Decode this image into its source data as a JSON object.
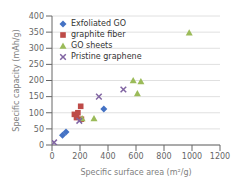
{
  "chart_data": {
    "type": "scatter",
    "xlabel": "Specific surface area (m²/g)",
    "ylabel": "Specific capacity (mAh/g)",
    "xlim": [
      0,
      1200
    ],
    "ylim": [
      0,
      400
    ],
    "xticks": [
      0,
      200,
      400,
      600,
      800,
      1000,
      1200
    ],
    "yticks": [
      0,
      50,
      100,
      150,
      200,
      250,
      300,
      350,
      400
    ],
    "grid": "y",
    "legend": "upper left",
    "series": [
      {
        "name": "Exfoliated GO",
        "color": "#4472C4",
        "marker": "diamond",
        "values": [
          [
            75,
            30
          ],
          [
            100,
            40
          ],
          [
            370,
            112
          ]
        ]
      },
      {
        "name": "graphite fiber",
        "color": "#BE4B48",
        "marker": "square",
        "values": [
          [
            160,
            95
          ],
          [
            175,
            85
          ],
          [
            185,
            100
          ],
          [
            205,
            120
          ],
          [
            210,
            80
          ]
        ]
      },
      {
        "name": "GO sheets",
        "color": "#9BBB59",
        "marker": "triangle",
        "values": [
          [
            215,
            82
          ],
          [
            300,
            82
          ],
          [
            580,
            200
          ],
          [
            610,
            160
          ],
          [
            635,
            197
          ],
          [
            980,
            348
          ]
        ]
      },
      {
        "name": "Pristine graphene",
        "color": "#8064A2",
        "marker": "x",
        "values": [
          [
            15,
            8
          ],
          [
            195,
            75
          ],
          [
            335,
            150
          ],
          [
            510,
            172
          ]
        ]
      }
    ]
  }
}
